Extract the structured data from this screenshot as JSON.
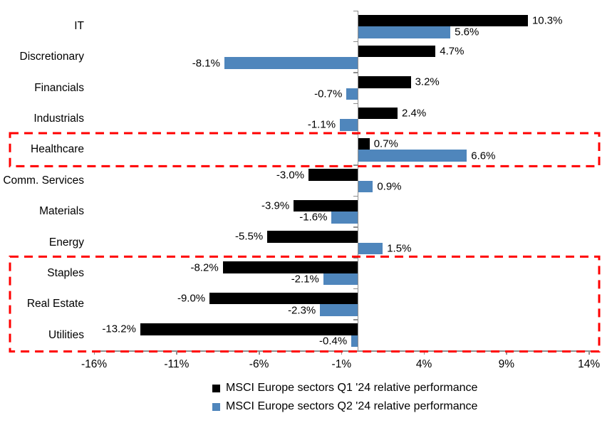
{
  "colors": {
    "background": "#FFFFFF",
    "q1_series": "#000000",
    "q2_series": "#4F86BC",
    "axis": "#8E8E8E",
    "highlight_box": "#FF0000",
    "text": "#000000"
  },
  "chart_data": {
    "type": "bar",
    "orientation": "horizontal",
    "title": "",
    "categories": [
      "IT",
      "Discretionary",
      "Financials",
      "Industrials",
      "Healthcare",
      "Comm. Services",
      "Materials",
      "Energy",
      "Staples",
      "Real Estate",
      "Utilities"
    ],
    "series": [
      {
        "name": "MSCI Europe sectors Q1 '24 relative performance",
        "color": "#000000",
        "values": [
          10.3,
          4.7,
          3.2,
          2.4,
          0.7,
          -3.0,
          -3.9,
          -5.5,
          -8.2,
          -9.0,
          -13.2
        ],
        "labels": [
          "10.3%",
          "4.7%",
          "3.2%",
          "2.4%",
          "0.7%",
          "-3.0%",
          "-3.9%",
          "-5.5%",
          "-8.2%",
          "-9.0%",
          "-13.2%"
        ]
      },
      {
        "name": "MSCI Europe sectors Q2 '24 relative performance",
        "color": "#4F86BC",
        "values": [
          5.6,
          -8.1,
          -0.7,
          -1.1,
          6.6,
          0.9,
          -1.6,
          1.5,
          -2.1,
          -2.3,
          -0.4
        ],
        "labels": [
          "5.6%",
          "-8.1%",
          "-0.7%",
          "-1.1%",
          "6.6%",
          "0.9%",
          "-1.6%",
          "1.5%",
          "-2.1%",
          "-2.3%",
          "-0.4%"
        ]
      }
    ],
    "x_axis": {
      "min": -16,
      "max": 14,
      "unit": "%",
      "tick_values": [
        -16,
        -11,
        -6,
        -1,
        4,
        9,
        14
      ],
      "tick_labels": [
        "-16%",
        "-11%",
        "-6%",
        "-1%",
        "4%",
        "9%",
        "14%"
      ]
    },
    "grid": false,
    "legend_position": "bottom",
    "highlights": [
      {
        "categories": [
          "Healthcare"
        ],
        "color": "#FF0000",
        "style": "dashed"
      },
      {
        "categories": [
          "Staples",
          "Real Estate",
          "Utilities"
        ],
        "color": "#FF0000",
        "style": "dashed"
      }
    ]
  }
}
